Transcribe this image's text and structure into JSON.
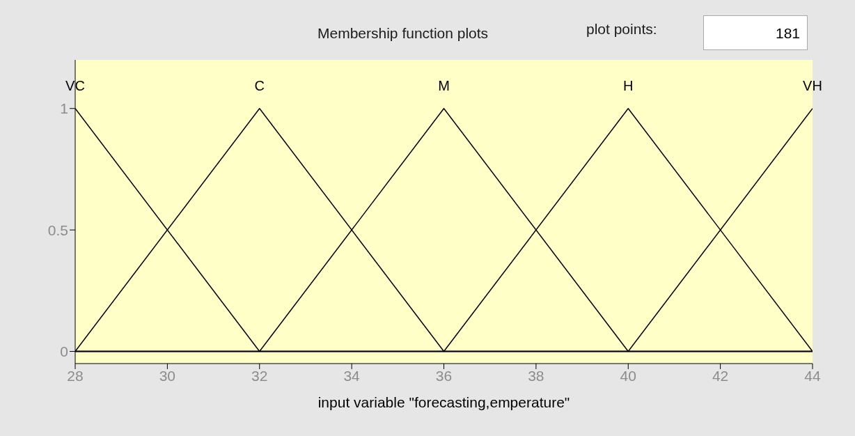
{
  "chart_data": {
    "type": "line",
    "title": "Membership function plots",
    "xlabel": "input variable \"forecasting,emperature\"",
    "annotations": [
      "plot points:",
      "181"
    ],
    "series": [
      {
        "name": "VC",
        "color": "#000000",
        "x": [
          28,
          32,
          44
        ],
        "values": [
          1,
          0,
          0
        ]
      },
      {
        "name": "C",
        "color": "#000000",
        "x": [
          28,
          32,
          36,
          44
        ],
        "values": [
          0,
          1,
          0,
          0
        ]
      },
      {
        "name": "M",
        "color": "#000000",
        "x": [
          28,
          32,
          36,
          40,
          44
        ],
        "values": [
          0,
          0,
          1,
          0,
          0
        ]
      },
      {
        "name": "H",
        "color": "#000000",
        "x": [
          28,
          36,
          40,
          44
        ],
        "values": [
          0,
          0,
          1,
          0
        ]
      },
      {
        "name": "VH",
        "color": "#000000",
        "x": [
          28,
          40,
          44
        ],
        "values": [
          0,
          0,
          1
        ]
      }
    ],
    "xlim": [
      28,
      44
    ],
    "xticks": [
      28,
      30,
      32,
      34,
      36,
      38,
      40,
      42,
      44
    ],
    "ylim": [
      -0.05,
      1.2
    ],
    "yticks": [
      0,
      0.5,
      1
    ],
    "grid": false,
    "marker": "none",
    "line_style": "solid"
  }
}
